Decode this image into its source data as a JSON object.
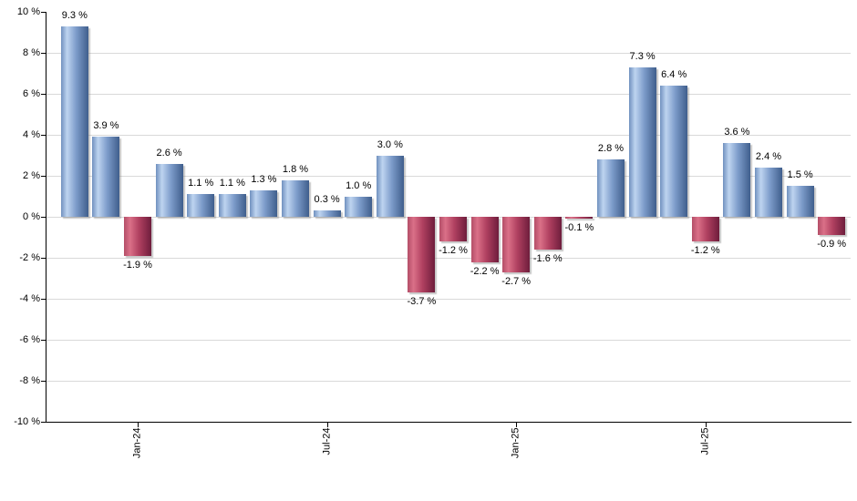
{
  "chart_data": {
    "type": "bar",
    "title": "",
    "xlabel": "",
    "ylabel": "",
    "values": [
      9.3,
      3.9,
      -1.9,
      2.6,
      1.1,
      1.1,
      1.3,
      1.8,
      0.3,
      1.0,
      3.0,
      -3.7,
      -1.2,
      -2.2,
      -2.7,
      -1.6,
      -0.1,
      2.8,
      7.3,
      6.4,
      -1.2,
      3.6,
      2.4,
      1.5,
      -0.9
    ],
    "bar_labels": [
      "9.3 %",
      "3.9 %",
      "-1.9 %",
      "2.6 %",
      "1.1 %",
      "1.1 %",
      "1.3 %",
      "1.8 %",
      "0.3 %",
      "1.0 %",
      "3.0 %",
      "-3.7 %",
      "-1.2 %",
      "-2.2 %",
      "-2.7 %",
      "-1.6 %",
      "-0.1 %",
      "2.8 %",
      "7.3 %",
      "6.4 %",
      "-1.2 %",
      "3.6 %",
      "2.4 %",
      "1.5 %",
      "-0.9 %"
    ],
    "x_tick_labels": [
      {
        "index": 2,
        "label": "Jan-24"
      },
      {
        "index": 8,
        "label": "Jul-24"
      },
      {
        "index": 14,
        "label": "Jan-25"
      },
      {
        "index": 20,
        "label": "Jul-25"
      }
    ],
    "y_tick_values": [
      10,
      8,
      6,
      4,
      2,
      0,
      -2,
      -4,
      -6,
      -8,
      -10
    ],
    "y_tick_labels": [
      "10 %",
      "8 %",
      "6 %",
      "4 %",
      "2 %",
      "0 %",
      "-2 %",
      "-4 %",
      "-6 %",
      "-8 %",
      "-10 %"
    ],
    "ylim": [
      -10,
      10
    ],
    "grid": true,
    "legend": "none",
    "colors": {
      "positive_stops": [
        "#7091bf",
        "#bed4f0",
        "#7d9cca",
        "#3f5e8c"
      ],
      "negative_stops": [
        "#b44e68",
        "#da7088",
        "#b04060",
        "#6e1d3c"
      ],
      "gridline": "#d9d9d9",
      "axis": "#000000",
      "label_text": "#000000",
      "background": "#ffffff"
    }
  }
}
